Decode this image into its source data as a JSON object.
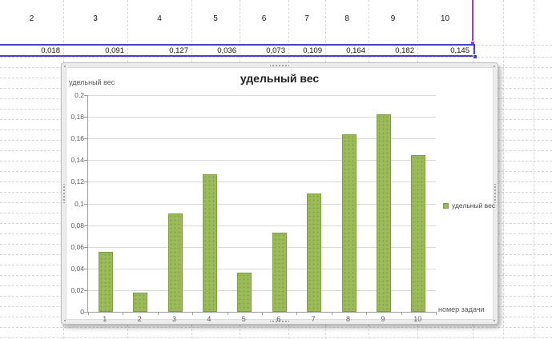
{
  "spreadsheet": {
    "header_row": [
      "2",
      "3",
      "4",
      "5",
      "6",
      "7",
      "8",
      "9",
      "10"
    ],
    "value_row": [
      "0,018",
      "0,091",
      "0,127",
      "0,036",
      "0,073",
      "0,109",
      "0,164",
      "0,182",
      "0,145"
    ],
    "colors": {
      "values_selection_border": "#4141cb",
      "categories_selection_border": "#a435cf",
      "gridline": "#d6d6d6"
    }
  },
  "chart_data": {
    "type": "bar",
    "title": "удельный вес",
    "y_axis_title": "удельный вес",
    "x_axis_title": "номер задачи",
    "categories": [
      "1",
      "2",
      "3",
      "4",
      "5",
      "6",
      "7",
      "8",
      "9",
      "10"
    ],
    "series": [
      {
        "name": "удельный вес",
        "values": [
          0.055,
          0.018,
          0.091,
          0.127,
          0.036,
          0.073,
          0.109,
          0.164,
          0.182,
          0.145
        ]
      }
    ],
    "ylim": [
      0,
      0.2
    ],
    "y_tick_step": 0.02,
    "y_tick_labels": [
      "0",
      "0,02",
      "0,04",
      "0,06",
      "0,08",
      "0,1",
      "0,12",
      "0,14",
      "0,16",
      "0,18",
      "0,2"
    ],
    "legend": {
      "label": "удельный вес",
      "position": "right",
      "swatch_color": "#9bbb59"
    },
    "bar_color": "#9bbb59",
    "bar_border_color": "#7f9c3f",
    "grid": true
  }
}
